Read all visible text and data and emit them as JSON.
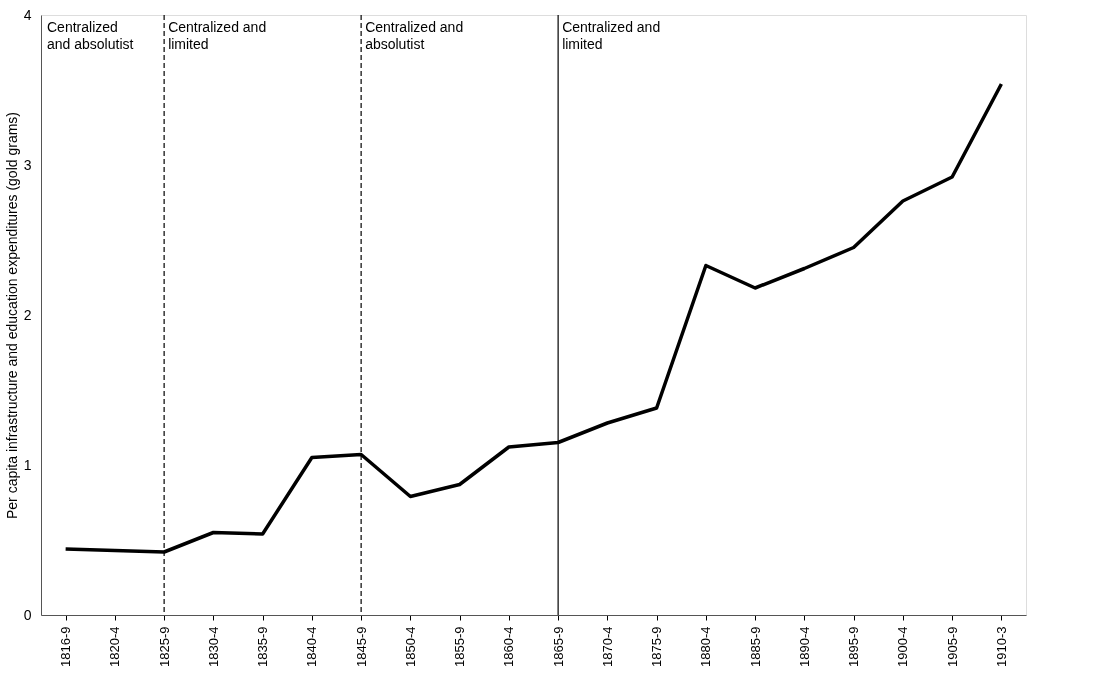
{
  "chart_data": {
    "type": "line",
    "ylabel": "Per capita infrastructure and education expenditures (gold grams)",
    "categories": [
      "1816-9",
      "1820-4",
      "1825-9",
      "1830-4",
      "1835-9",
      "1840-4",
      "1845-9",
      "1850-4",
      "1855-9",
      "1860-4",
      "1865-9",
      "1870-4",
      "1875-9",
      "1880-4",
      "1885-9",
      "1890-4",
      "1895-9",
      "1900-4",
      "1905-9",
      "1910-3"
    ],
    "series": [
      {
        "color": "#000000",
        "values": [
          0.44,
          0.43,
          0.42,
          0.55,
          0.54,
          1.05,
          1.07,
          0.79,
          0.87,
          1.12,
          1.15,
          1.28,
          1.38,
          2.33,
          2.18,
          2.31,
          2.45,
          2.76,
          2.92,
          3.54
        ]
      }
    ],
    "annotations": [
      "Centralized\nand absolutist"
    ],
    "ylim": [
      0,
      4
    ],
    "yticks": [
      0,
      1,
      2,
      3,
      4
    ],
    "grid": false,
    "marker": "none",
    "line_style": "solid",
    "ref_lines": [
      {
        "axis": "x",
        "value": "1825-9",
        "label": "Centralized and\nlimited",
        "line_style": "dashed",
        "color": "#000000"
      },
      {
        "axis": "x",
        "value": "1845-9",
        "label": "Centralized and\nabsolutist",
        "line_style": "dashed",
        "color": "#000000"
      },
      {
        "axis": "x",
        "value": "1865-9",
        "label": "Centralized and\nlimited",
        "line_style": "solid",
        "color": "#000000"
      }
    ]
  }
}
